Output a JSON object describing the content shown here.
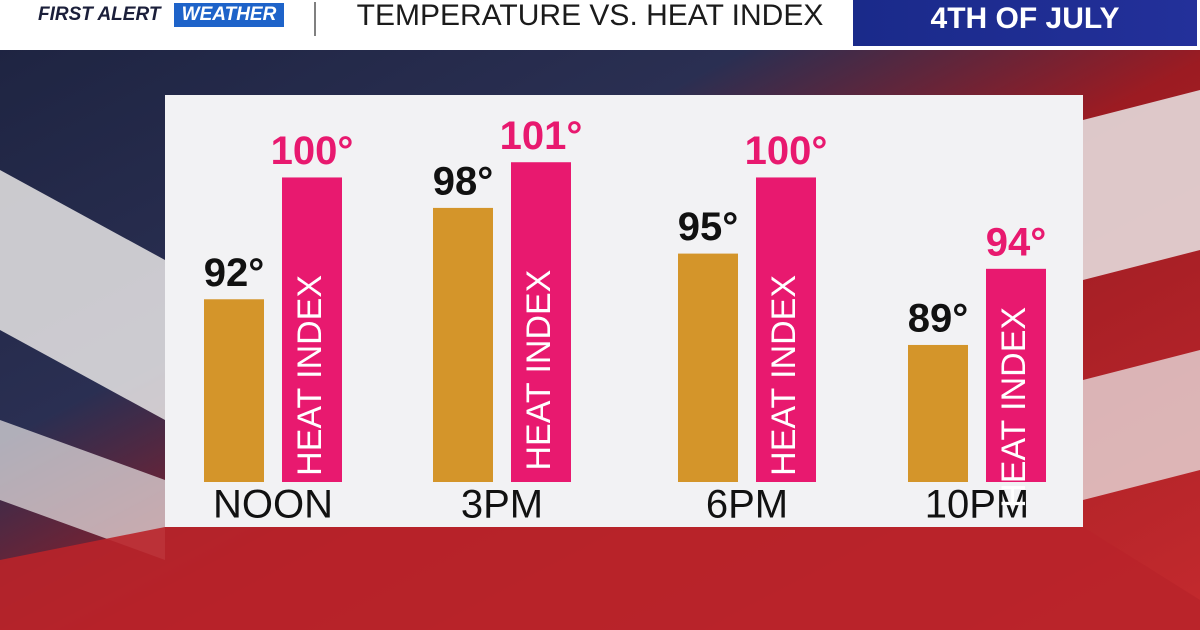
{
  "header": {
    "brand_1": "FIRST ALERT",
    "brand_2": "WEATHER",
    "badge": "4TH OF JULY"
  },
  "chart_data": {
    "type": "bar",
    "title": "TEMPERATURE VS. HEAT INDEX",
    "categories": [
      "NOON",
      "3PM",
      "6PM",
      "10PM"
    ],
    "series": [
      {
        "color": "#d4952a",
        "values": [
          92,
          98,
          95,
          89
        ],
        "value_labels": [
          "92°",
          "98°",
          "95°",
          "89°"
        ]
      },
      {
        "name": "HEAT INDEX",
        "color": "#e8196f",
        "values": [
          100,
          101,
          100,
          94
        ],
        "value_labels": [
          "100°",
          "101°",
          "100°",
          "94°"
        ]
      }
    ],
    "ylim": [
      80,
      102
    ]
  }
}
